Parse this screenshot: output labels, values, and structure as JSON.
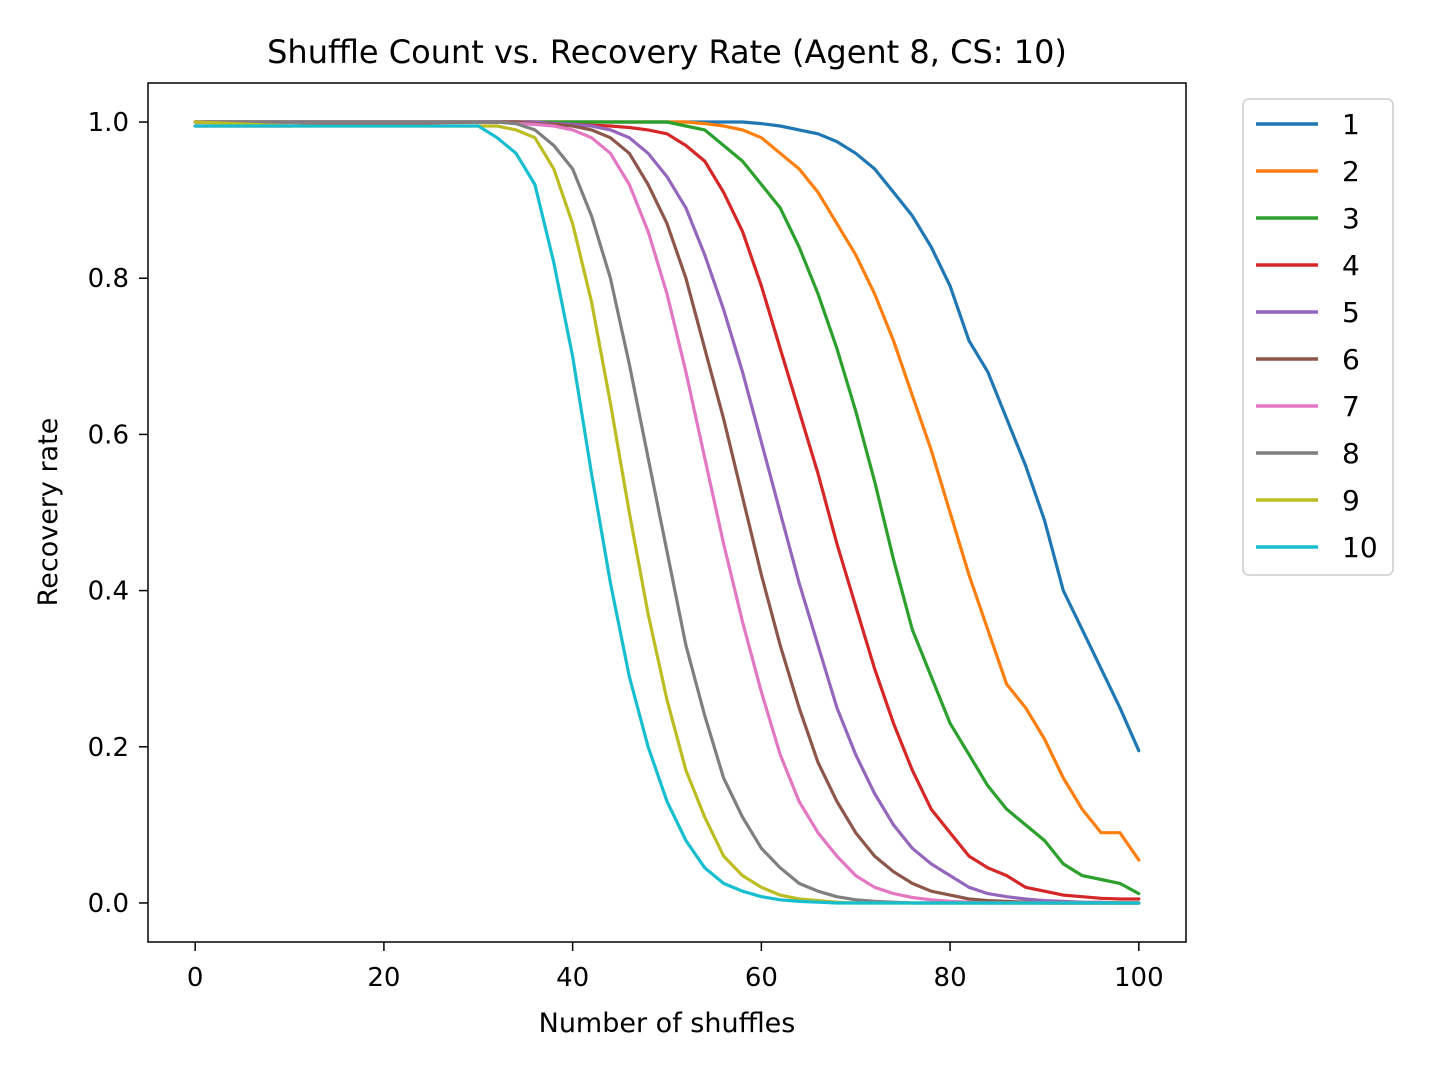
{
  "chart_data": {
    "type": "line",
    "title": "Shuffle Count vs. Recovery Rate (Agent 8, CS: 10)",
    "xlabel": "Number of shuffles",
    "ylabel": "Recovery rate",
    "xlim": [
      -5,
      105
    ],
    "ylim": [
      -0.05,
      1.05
    ],
    "xticks": [
      0,
      20,
      40,
      60,
      80,
      100
    ],
    "yticks": [
      0.0,
      0.2,
      0.4,
      0.6,
      0.8,
      1.0
    ],
    "xtick_labels": [
      "0",
      "20",
      "40",
      "60",
      "80",
      "100"
    ],
    "ytick_labels": [
      "0.0",
      "0.2",
      "0.4",
      "0.6",
      "0.8",
      "1.0"
    ],
    "grid": false,
    "legend_position": "outside-right-top",
    "x": [
      0,
      10,
      20,
      30,
      32,
      34,
      36,
      38,
      40,
      42,
      44,
      46,
      48,
      50,
      52,
      54,
      56,
      58,
      60,
      62,
      64,
      66,
      68,
      70,
      72,
      74,
      76,
      78,
      80,
      82,
      84,
      86,
      88,
      90,
      92,
      94,
      96,
      98,
      100
    ],
    "series": [
      {
        "name": "1",
        "color": "#1f77b4",
        "values": [
          1.0,
          1.0,
          1.0,
          1.0,
          1.0,
          1.0,
          1.0,
          1.0,
          1.0,
          1.0,
          1.0,
          1.0,
          1.0,
          1.0,
          1.0,
          1.0,
          1.0,
          1.0,
          0.998,
          0.995,
          0.99,
          0.985,
          0.975,
          0.96,
          0.94,
          0.91,
          0.88,
          0.84,
          0.79,
          0.72,
          0.68,
          0.62,
          0.56,
          0.49,
          0.4,
          0.35,
          0.3,
          0.25,
          0.195
        ]
      },
      {
        "name": "2",
        "color": "#ff7f0e",
        "values": [
          1.0,
          1.0,
          1.0,
          1.0,
          1.0,
          1.0,
          1.0,
          1.0,
          1.0,
          1.0,
          1.0,
          1.0,
          1.0,
          1.0,
          1.0,
          0.998,
          0.995,
          0.99,
          0.98,
          0.96,
          0.94,
          0.91,
          0.87,
          0.83,
          0.78,
          0.72,
          0.65,
          0.58,
          0.5,
          0.42,
          0.35,
          0.28,
          0.25,
          0.21,
          0.16,
          0.12,
          0.09,
          0.09,
          0.055
        ]
      },
      {
        "name": "3",
        "color": "#2ca02c",
        "values": [
          1.0,
          1.0,
          1.0,
          1.0,
          1.0,
          1.0,
          1.0,
          1.0,
          1.0,
          1.0,
          1.0,
          1.0,
          1.0,
          1.0,
          0.995,
          0.99,
          0.97,
          0.95,
          0.92,
          0.89,
          0.84,
          0.78,
          0.71,
          0.63,
          0.54,
          0.44,
          0.35,
          0.29,
          0.23,
          0.19,
          0.15,
          0.12,
          0.1,
          0.08,
          0.05,
          0.035,
          0.03,
          0.025,
          0.012
        ]
      },
      {
        "name": "4",
        "color": "#d62728",
        "values": [
          0.995,
          0.995,
          0.998,
          1.0,
          1.0,
          1.0,
          1.0,
          0.998,
          0.997,
          0.996,
          0.995,
          0.993,
          0.99,
          0.985,
          0.97,
          0.95,
          0.91,
          0.86,
          0.79,
          0.71,
          0.63,
          0.55,
          0.46,
          0.38,
          0.3,
          0.23,
          0.17,
          0.12,
          0.09,
          0.06,
          0.045,
          0.035,
          0.02,
          0.015,
          0.01,
          0.008,
          0.006,
          0.005,
          0.005
        ]
      },
      {
        "name": "5",
        "color": "#9467bd",
        "values": [
          1.0,
          1.0,
          1.0,
          1.0,
          1.0,
          1.0,
          1.0,
          0.998,
          0.997,
          0.995,
          0.99,
          0.98,
          0.96,
          0.93,
          0.89,
          0.83,
          0.76,
          0.68,
          0.59,
          0.5,
          0.41,
          0.33,
          0.25,
          0.19,
          0.14,
          0.1,
          0.07,
          0.05,
          0.035,
          0.02,
          0.012,
          0.008,
          0.005,
          0.003,
          0.002,
          0.001,
          0.001,
          0.0,
          0.0
        ]
      },
      {
        "name": "6",
        "color": "#8c564b",
        "values": [
          1.0,
          1.0,
          1.0,
          1.0,
          1.0,
          1.0,
          0.998,
          0.997,
          0.995,
          0.99,
          0.98,
          0.96,
          0.92,
          0.87,
          0.8,
          0.71,
          0.62,
          0.52,
          0.42,
          0.33,
          0.25,
          0.18,
          0.13,
          0.09,
          0.06,
          0.04,
          0.025,
          0.015,
          0.01,
          0.005,
          0.003,
          0.002,
          0.001,
          0.0,
          0.0,
          0.0,
          0.0,
          0.0,
          0.0
        ]
      },
      {
        "name": "7",
        "color": "#e377c2",
        "values": [
          1.0,
          1.0,
          1.0,
          1.0,
          1.0,
          0.998,
          0.997,
          0.995,
          0.99,
          0.98,
          0.96,
          0.92,
          0.86,
          0.78,
          0.68,
          0.57,
          0.46,
          0.36,
          0.27,
          0.19,
          0.13,
          0.09,
          0.06,
          0.035,
          0.02,
          0.012,
          0.007,
          0.004,
          0.002,
          0.001,
          0.0,
          0.0,
          0.0,
          0.0,
          0.0,
          0.0,
          0.0,
          0.0,
          0.0
        ]
      },
      {
        "name": "8",
        "color": "#7f7f7f",
        "values": [
          1.0,
          1.0,
          1.0,
          1.0,
          1.0,
          0.998,
          0.99,
          0.97,
          0.94,
          0.88,
          0.8,
          0.69,
          0.57,
          0.45,
          0.33,
          0.24,
          0.16,
          0.11,
          0.07,
          0.045,
          0.025,
          0.015,
          0.008,
          0.004,
          0.002,
          0.001,
          0.0,
          0.0,
          0.0,
          0.0,
          0.0,
          0.0,
          0.0,
          0.0,
          0.0,
          0.0,
          0.0,
          0.0,
          0.0
        ]
      },
      {
        "name": "9",
        "color": "#bcbd22",
        "values": [
          1.0,
          0.995,
          0.995,
          0.995,
          0.995,
          0.99,
          0.98,
          0.94,
          0.87,
          0.77,
          0.64,
          0.5,
          0.37,
          0.26,
          0.17,
          0.11,
          0.06,
          0.035,
          0.02,
          0.01,
          0.005,
          0.003,
          0.001,
          0.0,
          0.0,
          0.0,
          0.0,
          0.0,
          0.0,
          0.0,
          0.0,
          0.0,
          0.0,
          0.0,
          0.0,
          0.0,
          0.0,
          0.0,
          0.0
        ]
      },
      {
        "name": "10",
        "color": "#17becf",
        "values": [
          0.995,
          0.995,
          0.995,
          0.995,
          0.98,
          0.96,
          0.92,
          0.82,
          0.7,
          0.55,
          0.41,
          0.29,
          0.2,
          0.13,
          0.08,
          0.045,
          0.025,
          0.015,
          0.008,
          0.004,
          0.002,
          0.001,
          0.0,
          0.0,
          0.0,
          0.0,
          0.0,
          0.0,
          0.0,
          0.0,
          0.0,
          0.0,
          0.0,
          0.0,
          0.0,
          0.0,
          0.0,
          0.0,
          0.0
        ]
      }
    ]
  }
}
